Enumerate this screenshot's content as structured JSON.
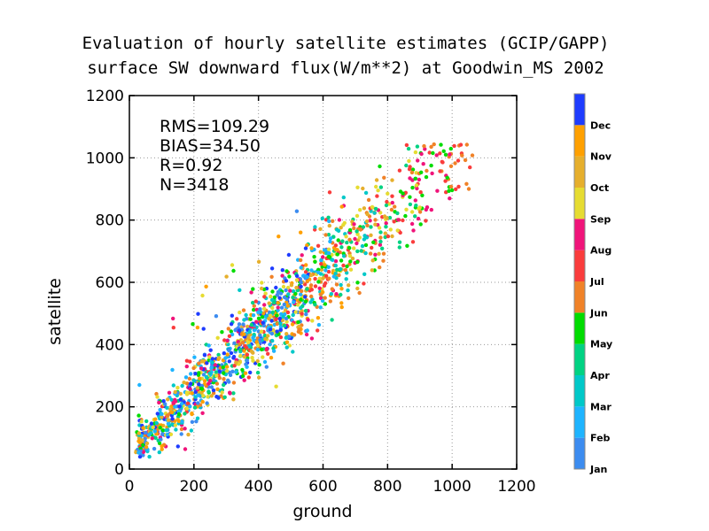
{
  "chart_data": {
    "type": "scatter",
    "title": "Evaluation of hourly satellite estimates (GCIP/GAPP)",
    "subtitle": "surface SW downward flux(W/m**2) at Goodwin_MS 2002",
    "xlabel": "ground",
    "ylabel": "satellite",
    "xlim": [
      0,
      1200
    ],
    "ylim": [
      0,
      1200
    ],
    "xticks": [
      "0",
      "200",
      "400",
      "600",
      "800",
      "1000",
      "1200"
    ],
    "yticks": [
      "0",
      "200",
      "400",
      "600",
      "800",
      "1000",
      "1200"
    ],
    "grid": true,
    "stats": [
      "RMS=109.29",
      "BIAS=34.50",
      "R=0.92",
      "N=3418"
    ],
    "legend_position": "right",
    "color_legend": [
      {
        "label": "Jan",
        "color": "#3c8cf0"
      },
      {
        "label": "Feb",
        "color": "#1eb4ff"
      },
      {
        "label": "Mar",
        "color": "#00c8c8"
      },
      {
        "label": "Apr",
        "color": "#00d282"
      },
      {
        "label": "May",
        "color": "#00dc00"
      },
      {
        "label": "Jun",
        "color": "#f08228"
      },
      {
        "label": "Jul",
        "color": "#fa3c3c"
      },
      {
        "label": "Aug",
        "color": "#f0147a"
      },
      {
        "label": "Sep",
        "color": "#e6dc32"
      },
      {
        "label": "Oct",
        "color": "#e6af2d"
      },
      {
        "label": "Nov",
        "color": "#ffa000"
      },
      {
        "label": "Dec",
        "color": "#1e3cff"
      }
    ],
    "series_fit": {
      "slope": 0.95,
      "intercept": 55,
      "scatter_sd": 70,
      "outlier_fraction": 0.06
    }
  }
}
